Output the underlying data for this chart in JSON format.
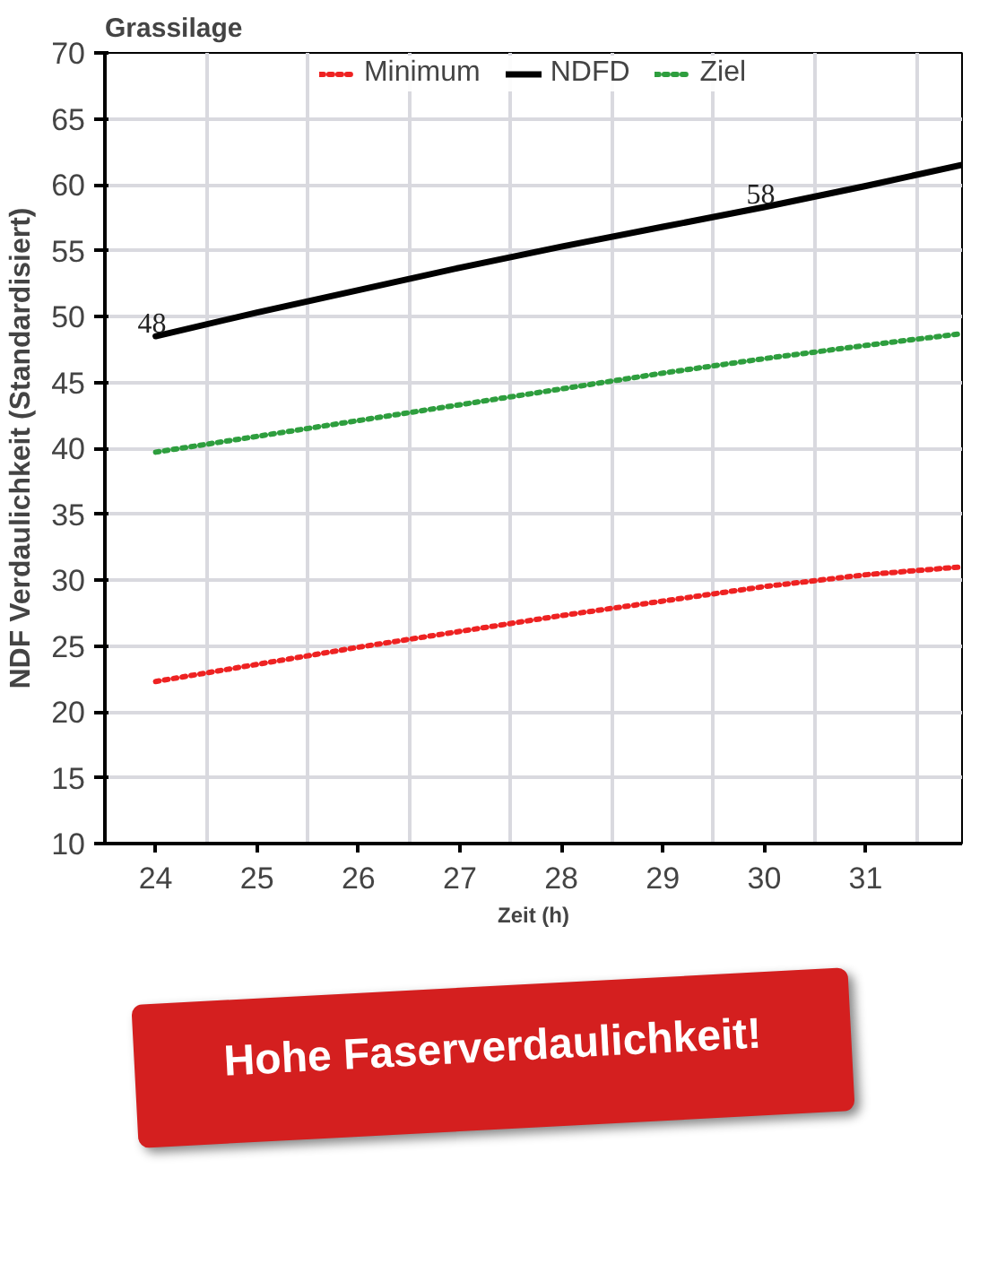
{
  "chart_data": {
    "type": "line",
    "title": "Grassilage",
    "xlabel": "Zeit (h)",
    "ylabel": "NDF Verdaulichkeit (Standardisiert)",
    "x": [
      24,
      25,
      26,
      27,
      28,
      29,
      30,
      31,
      31.95
    ],
    "series": [
      {
        "name": "Minimum",
        "color": "#ee2222",
        "line_style": "dotted",
        "values": [
          22.3,
          23.6,
          24.9,
          26.1,
          27.3,
          28.4,
          29.5,
          30.4,
          31.0
        ]
      },
      {
        "name": "NDFD",
        "color": "#000000",
        "line_style": "solid",
        "values": [
          48.5,
          50.3,
          52.0,
          53.7,
          55.3,
          56.8,
          58.3,
          59.9,
          61.5
        ],
        "value_labels": [
          "48",
          null,
          null,
          null,
          null,
          null,
          "58",
          null,
          null
        ]
      },
      {
        "name": "Ziel",
        "color": "#2e9e3e",
        "line_style": "dotted",
        "values": [
          39.7,
          40.9,
          42.1,
          43.3,
          44.5,
          45.7,
          46.8,
          47.8,
          48.7
        ]
      }
    ],
    "xlim": [
      23.5,
      31.95
    ],
    "xticks": [
      24,
      25,
      26,
      27,
      28,
      29,
      30,
      31
    ],
    "ylim": [
      10,
      70
    ],
    "yticks": [
      10,
      15,
      20,
      25,
      30,
      35,
      40,
      45,
      50,
      55,
      60,
      65,
      70
    ],
    "grid": true,
    "legend": "top",
    "marker": "none",
    "annotations": [
      "Hohe Faserverdaulichkeit!"
    ]
  }
}
